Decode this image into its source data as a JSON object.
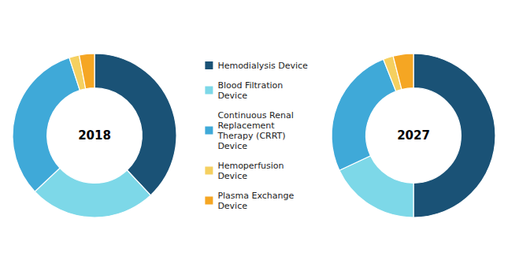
{
  "chart_data": {
    "type": "pie",
    "categories": [
      "Hemodialysis Device",
      "Blood Filtration\nDevice",
      "Continuous Renal\nReplacement\nTherapy (CRRT)\nDevice",
      "Hemoperfusion\nDevice",
      "Plasma Exchange\nDevice"
    ],
    "colors": [
      "#1a5276",
      "#7dd8e8",
      "#3fa9d8",
      "#f5d060",
      "#f5a623"
    ],
    "legend": "center",
    "series": [
      {
        "name": "2018",
        "values": [
          38,
          25,
          32,
          2,
          3
        ]
      },
      {
        "name": "2027",
        "values": [
          50,
          18,
          26,
          2,
          4
        ]
      }
    ]
  }
}
